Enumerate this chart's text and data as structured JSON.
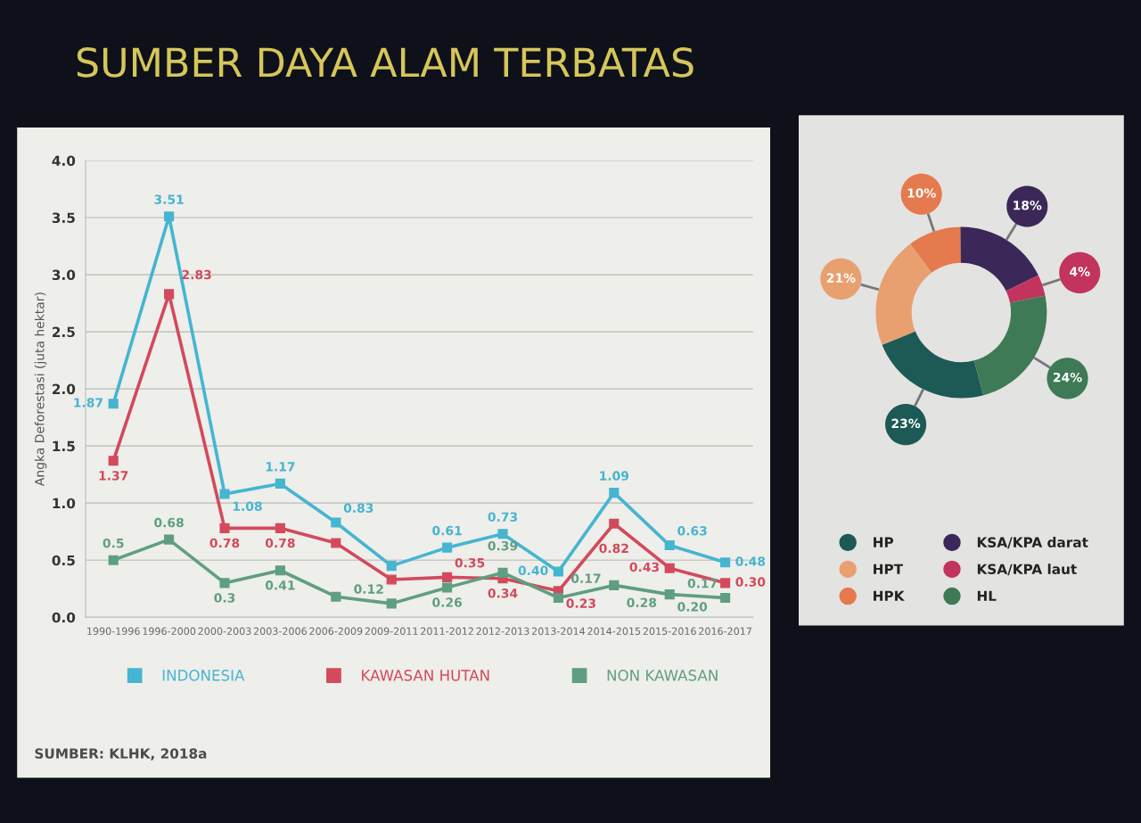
{
  "chart_data": [
    {
      "type": "line",
      "title": "SUMBER DAYA ALAM TERBATAS",
      "ylabel": "Angka Deforestasi (juta hektar)",
      "categories": [
        "1990-1996",
        "1996-2000",
        "2000-2003",
        "2003-2006",
        "2006-2009",
        "2009-2011",
        "2011-2012",
        "2012-2013",
        "2013-2014",
        "2014-2015",
        "2015-2016",
        "2016-2017"
      ],
      "series": [
        {
          "name": "INDONESIA",
          "color": "#45b5d1",
          "values": [
            1.87,
            3.51,
            1.08,
            1.17,
            0.83,
            0.45,
            0.61,
            0.73,
            0.4,
            1.09,
            0.63,
            0.48
          ],
          "value_labels": [
            "1.87",
            "3.51",
            "1.08",
            "1.17",
            "0.83",
            null,
            "0.61",
            "0.73",
            "0.40",
            "1.09",
            "0.63",
            "0.48"
          ]
        },
        {
          "name": "KAWASAN HUTAN",
          "color": "#d24a5c",
          "values": [
            1.37,
            2.83,
            0.78,
            0.78,
            0.65,
            0.33,
            0.35,
            0.34,
            0.23,
            0.82,
            0.43,
            0.3
          ],
          "value_labels": [
            "1.37",
            "2.83",
            "0.78",
            "0.78",
            null,
            null,
            "0.35",
            "0.34",
            "0.23",
            "0.82",
            "0.43",
            "0.30"
          ]
        },
        {
          "name": "NON KAWASAN",
          "color": "#5f9e82",
          "values": [
            0.5,
            0.68,
            0.3,
            0.41,
            0.18,
            0.12,
            0.26,
            0.39,
            0.17,
            0.28,
            0.2,
            0.17
          ],
          "value_labels": [
            "0.5",
            "0.68",
            "0.3",
            "0.41",
            null,
            "0.12",
            "0.26",
            "0.39",
            "0.17",
            "0.28",
            "0.20",
            "0.17"
          ]
        }
      ],
      "ylim": [
        0,
        4
      ],
      "yticks": [
        {
          "value": 0,
          "label": "0.0"
        },
        {
          "value": 0.5,
          "label": "0.5"
        },
        {
          "value": 1,
          "label": "1.0"
        },
        {
          "value": 1.5,
          "label": "1.5"
        },
        {
          "value": 2,
          "label": "2.0"
        },
        {
          "value": 2.5,
          "label": "2.5"
        },
        {
          "value": 3,
          "label": "3.0"
        },
        {
          "value": 3.5,
          "label": "3.5"
        },
        {
          "value": 4,
          "label": "4.0"
        }
      ],
      "grid": "y",
      "legend": "bottom",
      "marker": "square",
      "line_style": "solid",
      "annotations": [
        "SUMBER: KLHK, 2018a"
      ]
    },
    {
      "type": "donut",
      "categories": [
        "HP",
        "HPT",
        "HPK",
        "KSA/KPA darat",
        "KSA/KPA laut",
        "HL"
      ],
      "values": [
        23,
        21,
        10,
        18,
        4,
        24
      ],
      "colors": [
        "#1d5a55",
        "#e8a070",
        "#e57a4e",
        "#3b2758",
        "#c2335e",
        "#3d7a55"
      ],
      "value_labels": [
        "23%",
        "21%",
        "10%",
        "18%",
        "4%",
        "24%"
      ],
      "legend": "bottom"
    }
  ]
}
